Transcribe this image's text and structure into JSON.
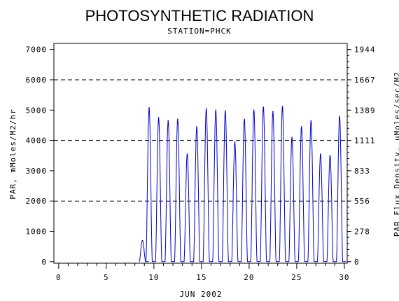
{
  "chart_data": {
    "type": "line",
    "title": "PHOTOSYNTHETIC RADIATION",
    "subtitle": "STATION=PHCK",
    "xlabel": "JUN 2002",
    "ylabel": "PAR, mMoles/M2/hr",
    "y2label": "PAR Flux Density, uMoles/sec/M2",
    "xlim": [
      -0.5,
      30.3
    ],
    "ylim": [
      -50,
      7200
    ],
    "x_ticks": [
      0,
      5,
      10,
      15,
      20,
      25,
      30
    ],
    "y_ticks": [
      0,
      1000,
      2000,
      3000,
      4000,
      5000,
      6000,
      7000
    ],
    "y2_ticks": [
      "0",
      "278",
      "556",
      "833",
      "1111",
      "1389",
      "1667",
      "1944"
    ],
    "y2_scale": 0.2778,
    "grid": "dashed horizontal at 2000, 4000, 6000",
    "series": [
      {
        "color": "#0000cc",
        "daily_peaks": [
          {
            "day": 8.8,
            "peak": 700
          },
          {
            "day": 9.5,
            "peak": 5080
          },
          {
            "day": 10.5,
            "peak": 4750
          },
          {
            "day": 11.5,
            "peak": 4650
          },
          {
            "day": 12.5,
            "peak": 4700
          },
          {
            "day": 13.5,
            "peak": 3550
          },
          {
            "day": 14.5,
            "peak": 4450
          },
          {
            "day": 15.5,
            "peak": 5050
          },
          {
            "day": 16.5,
            "peak": 5000
          },
          {
            "day": 17.5,
            "peak": 4980
          },
          {
            "day": 18.5,
            "peak": 3950
          },
          {
            "day": 19.5,
            "peak": 4700
          },
          {
            "day": 20.5,
            "peak": 5000
          },
          {
            "day": 21.5,
            "peak": 5100
          },
          {
            "day": 22.5,
            "peak": 4950
          },
          {
            "day": 23.5,
            "peak": 5120
          },
          {
            "day": 24.5,
            "peak": 4100
          },
          {
            "day": 25.5,
            "peak": 4450
          },
          {
            "day": 26.5,
            "peak": 4650
          },
          {
            "day": 27.5,
            "peak": 3550
          },
          {
            "day": 28.5,
            "peak": 3500
          },
          {
            "day": 29.5,
            "peak": 4800
          }
        ]
      }
    ]
  }
}
